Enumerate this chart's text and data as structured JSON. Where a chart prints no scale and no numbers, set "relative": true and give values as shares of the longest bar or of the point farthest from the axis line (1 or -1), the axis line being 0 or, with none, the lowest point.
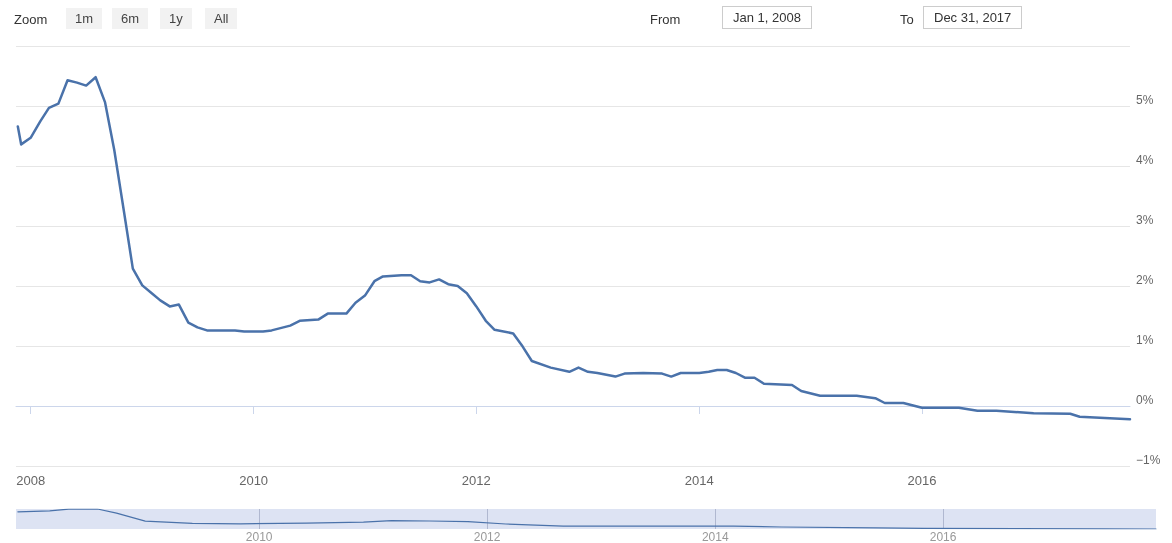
{
  "chart_data": [
    {
      "type": "line",
      "annotations": [
        "Zoom",
        "1m",
        "6m",
        "1y",
        "All",
        "From",
        "Jan 1, 2008",
        "To",
        "Dec 31, 2017"
      ],
      "x": [
        "2007-11-20",
        "2007-12",
        "2008-01",
        "2008-02",
        "2008-03",
        "2008-04",
        "2008-05",
        "2008-06",
        "2008-07",
        "2008-08",
        "2008-09",
        "2008-10",
        "2008-11",
        "2008-12",
        "2009-01",
        "2009-02",
        "2009-03",
        "2009-04",
        "2009-05",
        "2009-06",
        "2009-07",
        "2009-08",
        "2009-09",
        "2009-11",
        "2009-12",
        "2010-02",
        "2010-03",
        "2010-05",
        "2010-06",
        "2010-08",
        "2010-09",
        "2010-10",
        "2010-11",
        "2010-12",
        "2011-01",
        "2011-02",
        "2011-03",
        "2011-05",
        "2011-06",
        "2011-07",
        "2011-08",
        "2011-09",
        "2011-10",
        "2011-11",
        "2011-12",
        "2012-01",
        "2012-02",
        "2012-03",
        "2012-05",
        "2012-06",
        "2012-07",
        "2012-09",
        "2012-11",
        "2012-12",
        "2013-01",
        "2013-02",
        "2013-04",
        "2013-05",
        "2013-07",
        "2013-09",
        "2013-10",
        "2013-11",
        "2014-01",
        "2014-02",
        "2014-03",
        "2014-04",
        "2014-05",
        "2014-06",
        "2014-07",
        "2014-08",
        "2014-11",
        "2014-12",
        "2015-02",
        "2015-06",
        "2015-08",
        "2015-09",
        "2015-11",
        "2016-01",
        "2016-05",
        "2016-07",
        "2016-09",
        "2017-01",
        "2017-05",
        "2017-06",
        "2017-11-13"
      ],
      "series": [
        {
          "color": "#4a72aa",
          "values": [
            4.66,
            4.36,
            4.47,
            4.74,
            4.97,
            5.04,
            5.43,
            5.39,
            5.34,
            5.48,
            5.06,
            4.27,
            3.27,
            2.29,
            2.01,
            1.88,
            1.76,
            1.66,
            1.69,
            1.39,
            1.31,
            1.26,
            1.26,
            1.26,
            1.24,
            1.24,
            1.26,
            1.34,
            1.42,
            1.44,
            1.54,
            1.54,
            1.54,
            1.72,
            1.84,
            2.08,
            2.16,
            2.18,
            2.18,
            2.08,
            2.06,
            2.11,
            2.03,
            2.0,
            1.88,
            1.66,
            1.42,
            1.27,
            1.21,
            0.99,
            0.75,
            0.64,
            0.57,
            0.64,
            0.57,
            0.55,
            0.49,
            0.54,
            0.55,
            0.54,
            0.49,
            0.55,
            0.55,
            0.57,
            0.6,
            0.6,
            0.55,
            0.47,
            0.47,
            0.37,
            0.35,
            0.25,
            0.17,
            0.17,
            0.13,
            0.05,
            0.05,
            -0.03,
            -0.03,
            -0.08,
            -0.08,
            -0.12,
            -0.13,
            -0.18,
            -0.22
          ]
        }
      ],
      "xlim": [
        "2007-11-14",
        "2017-11-13"
      ],
      "xticks": [
        "2008",
        "2010",
        "2012",
        "2014",
        "2016"
      ],
      "ylim": [
        -1,
        6
      ],
      "yticks": [
        {
          "value": -1,
          "label": "−1%"
        },
        {
          "value": 0,
          "label": "0%"
        },
        {
          "value": 1,
          "label": "1%"
        },
        {
          "value": 2,
          "label": "2%"
        },
        {
          "value": 3,
          "label": "3%"
        },
        {
          "value": 4,
          "label": "4%"
        },
        {
          "value": 5,
          "label": "5%"
        },
        {
          "value": 6,
          "label": null
        }
      ],
      "grid": "y",
      "marker": "none",
      "line_style": "solid"
    },
    {
      "type": "line",
      "relative": true,
      "tick_labels": "x",
      "grid": "x",
      "marker": "none",
      "x": [
        "2007-11-20",
        "2008-03",
        "2008-05",
        "2008-08",
        "2008-10",
        "2009-01",
        "2009-06",
        "2009-11",
        "2010-06",
        "2010-12",
        "2011-03",
        "2011-07",
        "2011-11",
        "2012-03",
        "2012-09",
        "2013-05",
        "2014-03",
        "2014-08",
        "2015-06",
        "2015-11",
        "2016-09",
        "2017-06",
        "2017-11-13"
      ],
      "series": [
        {
          "color": "#4a72aa",
          "values": [
            0.86,
            0.91,
            0.99,
            1.0,
            0.79,
            0.39,
            0.28,
            0.26,
            0.29,
            0.34,
            0.42,
            0.4,
            0.37,
            0.25,
            0.14,
            0.14,
            0.14,
            0.1,
            0.06,
            0.03,
            0.02,
            0.01,
            0
          ]
        }
      ],
      "xlim": [
        "2007-11-14",
        "2017-11-13"
      ],
      "xticks": [
        "2010",
        "2012",
        "2014",
        "2016"
      ]
    }
  ]
}
